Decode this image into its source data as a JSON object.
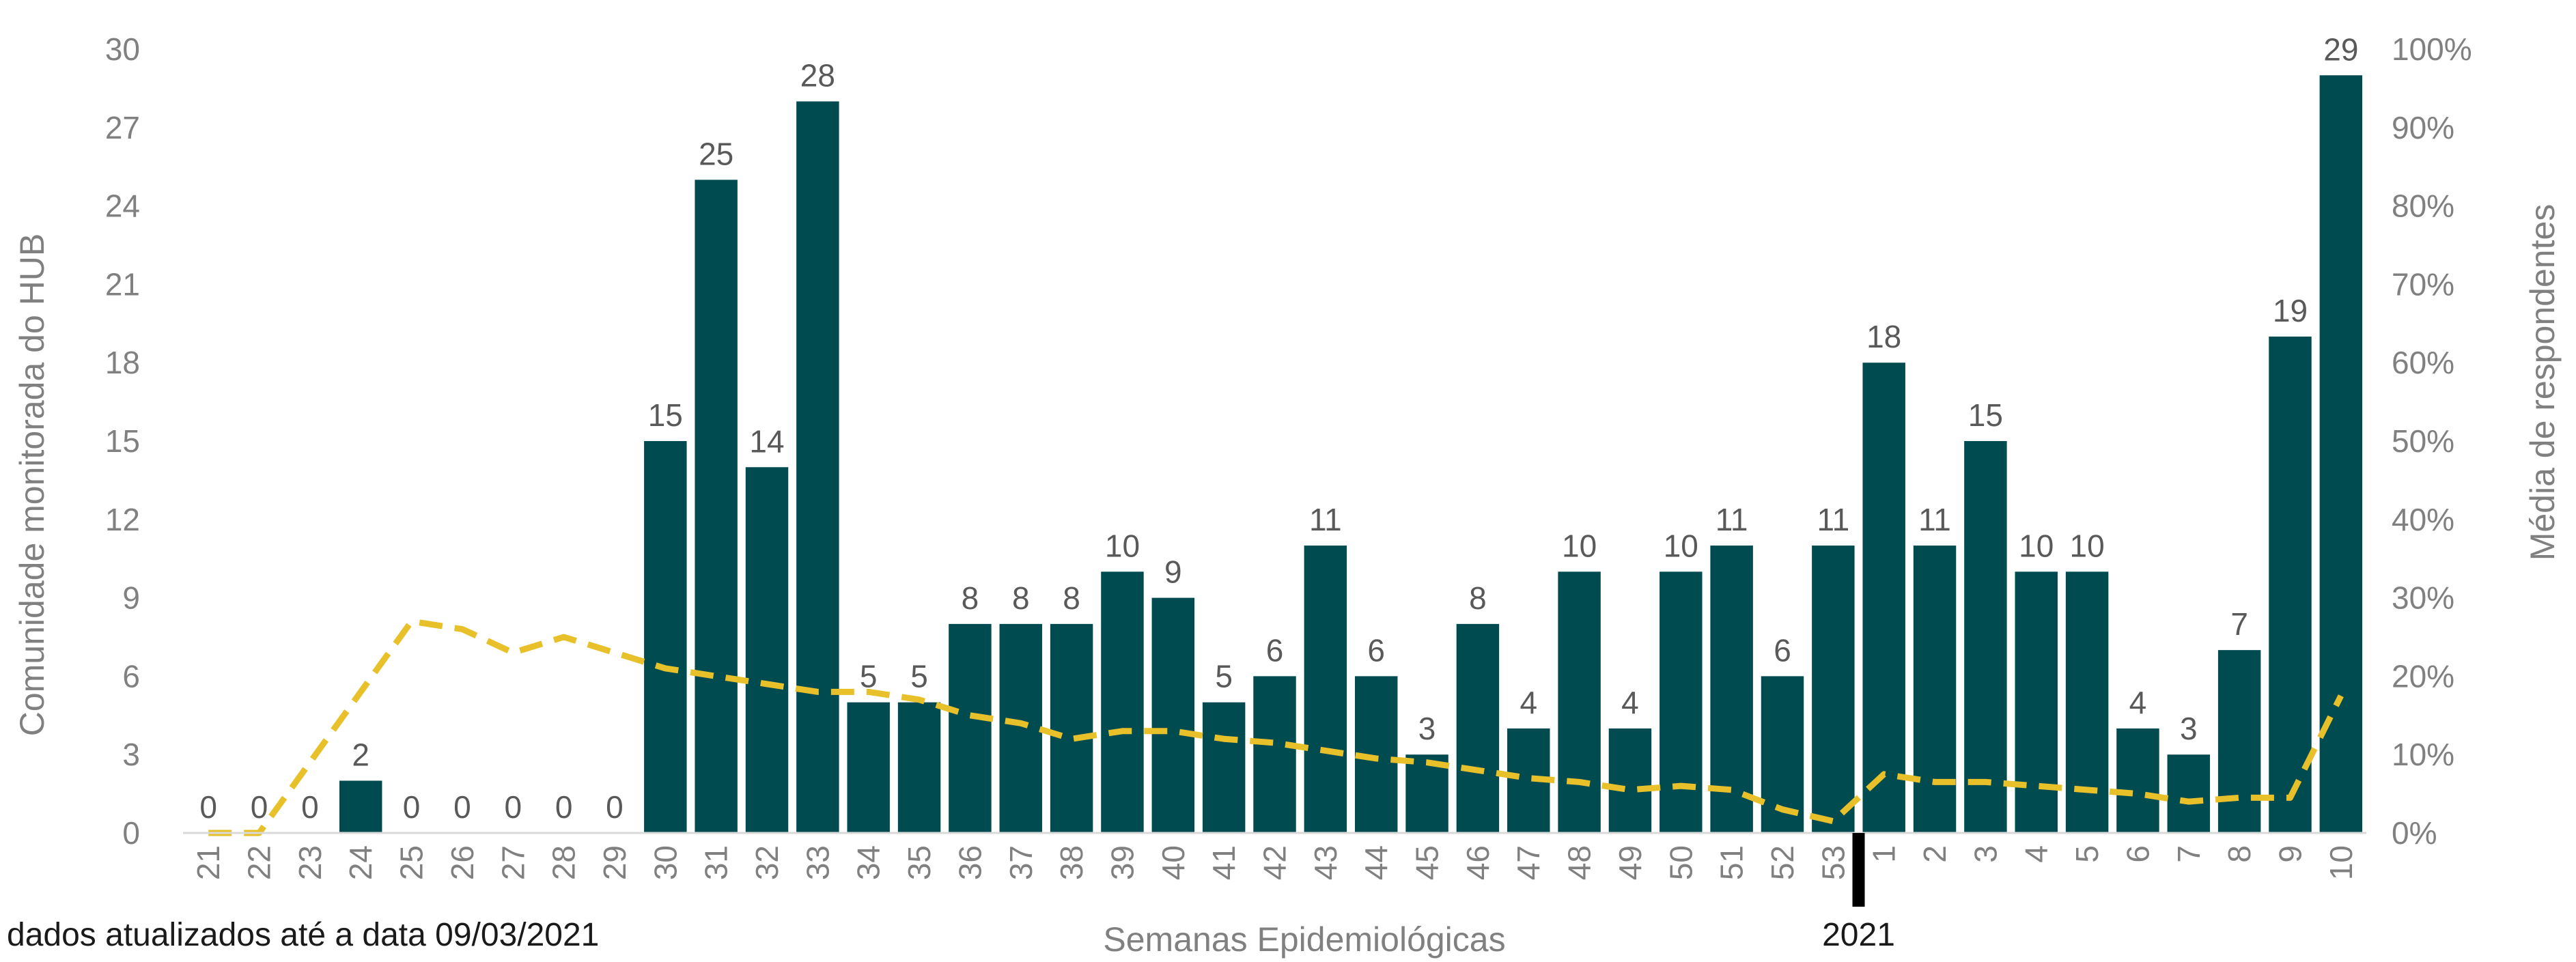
{
  "chart_data": {
    "type": "bar",
    "xlabel": "Semanas Epidemiológicas",
    "ylabel": "Comunidade monitorada do HUB",
    "y2label": "Média de respondentes",
    "ylim": [
      0,
      30
    ],
    "y_ticks": [
      0,
      3,
      6,
      9,
      12,
      15,
      18,
      21,
      24,
      27,
      30
    ],
    "y2lim": [
      0,
      1
    ],
    "y2_ticks": [
      "0%",
      "10%",
      "20%",
      "30%",
      "40%",
      "50%",
      "60%",
      "70%",
      "80%",
      "90%",
      "100%"
    ],
    "categories": [
      "21",
      "22",
      "23",
      "24",
      "25",
      "26",
      "27",
      "28",
      "29",
      "30",
      "31",
      "32",
      "33",
      "34",
      "35",
      "36",
      "37",
      "38",
      "39",
      "40",
      "41",
      "42",
      "43",
      "44",
      "45",
      "46",
      "47",
      "48",
      "49",
      "50",
      "51",
      "52",
      "53",
      "1",
      "2",
      "3",
      "4",
      "5",
      "6",
      "7",
      "8",
      "9",
      "10"
    ],
    "series": [
      {
        "type": "bar",
        "color": "#004b50",
        "values": [
          0,
          0,
          0,
          2,
          0,
          0,
          0,
          0,
          0,
          15,
          25,
          14,
          28,
          5,
          5,
          8,
          8,
          8,
          10,
          9,
          5,
          6,
          11,
          6,
          3,
          8,
          4,
          10,
          4,
          10,
          11,
          6,
          11,
          18,
          11,
          15,
          10,
          10,
          4,
          3,
          7,
          19,
          29
        ]
      },
      {
        "type": "line",
        "style": "dashed",
        "color": "#e8c12a",
        "axis": "right",
        "values": [
          0.0,
          0.0,
          0.09,
          0.18,
          0.27,
          0.26,
          0.23,
          0.25,
          0.23,
          0.21,
          0.2,
          0.19,
          0.18,
          0.18,
          0.17,
          0.15,
          0.14,
          0.12,
          0.13,
          0.13,
          0.12,
          0.115,
          0.105,
          0.095,
          0.09,
          0.08,
          0.07,
          0.065,
          0.055,
          0.06,
          0.055,
          0.03,
          0.015,
          0.075,
          0.065,
          0.065,
          0.06,
          0.055,
          0.05,
          0.04,
          0.045,
          0.045,
          0.175
        ]
      }
    ],
    "year_marker": {
      "label": "2021",
      "after_category": "53"
    },
    "footnote": "dados atualizados até a data 09/03/2021",
    "grid": false
  }
}
